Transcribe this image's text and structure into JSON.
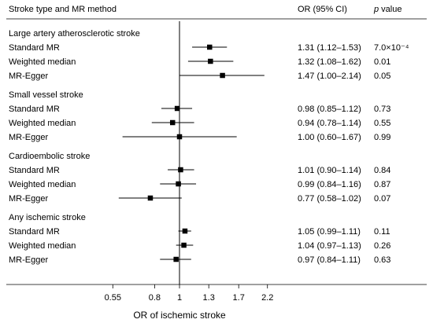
{
  "chart_data": {
    "type": "forest",
    "header": {
      "label_col": "Stroke type and MR method",
      "or_col": "OR (95% CI)",
      "p_col_italic": "p",
      "p_col_rest": " value"
    },
    "xlabel": "OR of ischemic stroke",
    "xscale": "log",
    "xlim": [
      0.45,
      2.7
    ],
    "xticks": [
      {
        "value": 0.55,
        "label": "0.55"
      },
      {
        "value": 0.8,
        "label": "0.8"
      },
      {
        "value": 1,
        "label": "1"
      },
      {
        "value": 1.3,
        "label": "1.3"
      },
      {
        "value": 1.7,
        "label": "1.7"
      },
      {
        "value": 2.2,
        "label": "2.2"
      }
    ],
    "reference_line": 1,
    "groups": [
      {
        "name": "Large artery atherosclerotic stroke",
        "rows": [
          {
            "method": "Standard MR",
            "or": 1.31,
            "lo": 1.12,
            "hi": 1.53,
            "or_text": "1.31 (1.12–1.53)",
            "p_text": "7.0×10⁻⁴"
          },
          {
            "method": "Weighted median",
            "or": 1.32,
            "lo": 1.08,
            "hi": 1.62,
            "or_text": "1.32 (1.08–1.62)",
            "p_text": "0.01"
          },
          {
            "method": "MR-Egger",
            "or": 1.47,
            "lo": 1.0,
            "hi": 2.14,
            "or_text": "1.47 (1.00–2.14)",
            "p_text": "0.05"
          }
        ]
      },
      {
        "name": "Small vessel stroke",
        "rows": [
          {
            "method": "Standard MR",
            "or": 0.98,
            "lo": 0.85,
            "hi": 1.12,
            "or_text": "0.98 (0.85–1.12)",
            "p_text": "0.73"
          },
          {
            "method": "Weighted median",
            "or": 0.94,
            "lo": 0.78,
            "hi": 1.14,
            "or_text": "0.94 (0.78–1.14)",
            "p_text": "0.55"
          },
          {
            "method": "MR-Egger",
            "or": 1.0,
            "lo": 0.6,
            "hi": 1.67,
            "or_text": "1.00 (0.60–1.67)",
            "p_text": "0.99"
          }
        ]
      },
      {
        "name": "Cardioembolic stroke",
        "rows": [
          {
            "method": "Standard MR",
            "or": 1.01,
            "lo": 0.9,
            "hi": 1.14,
            "or_text": "1.01 (0.90–1.14)",
            "p_text": "0.84"
          },
          {
            "method": "Weighted median",
            "or": 0.99,
            "lo": 0.84,
            "hi": 1.16,
            "or_text": "0.99 (0.84–1.16)",
            "p_text": "0.87"
          },
          {
            "method": "MR-Egger",
            "or": 0.77,
            "lo": 0.58,
            "hi": 1.02,
            "or_text": "0.77 (0.58–1.02)",
            "p_text": "0.07"
          }
        ]
      },
      {
        "name": "Any ischemic stroke",
        "rows": [
          {
            "method": "Standard MR",
            "or": 1.05,
            "lo": 0.99,
            "hi": 1.11,
            "or_text": "1.05 (0.99–1.11)",
            "p_text": "0.11"
          },
          {
            "method": "Weighted median",
            "or": 1.04,
            "lo": 0.97,
            "hi": 1.13,
            "or_text": "1.04 (0.97–1.13)",
            "p_text": "0.26"
          },
          {
            "method": "MR-Egger",
            "or": 0.97,
            "lo": 0.84,
            "hi": 1.11,
            "or_text": "0.97 (0.84–1.11)",
            "p_text": "0.63"
          }
        ]
      }
    ]
  }
}
